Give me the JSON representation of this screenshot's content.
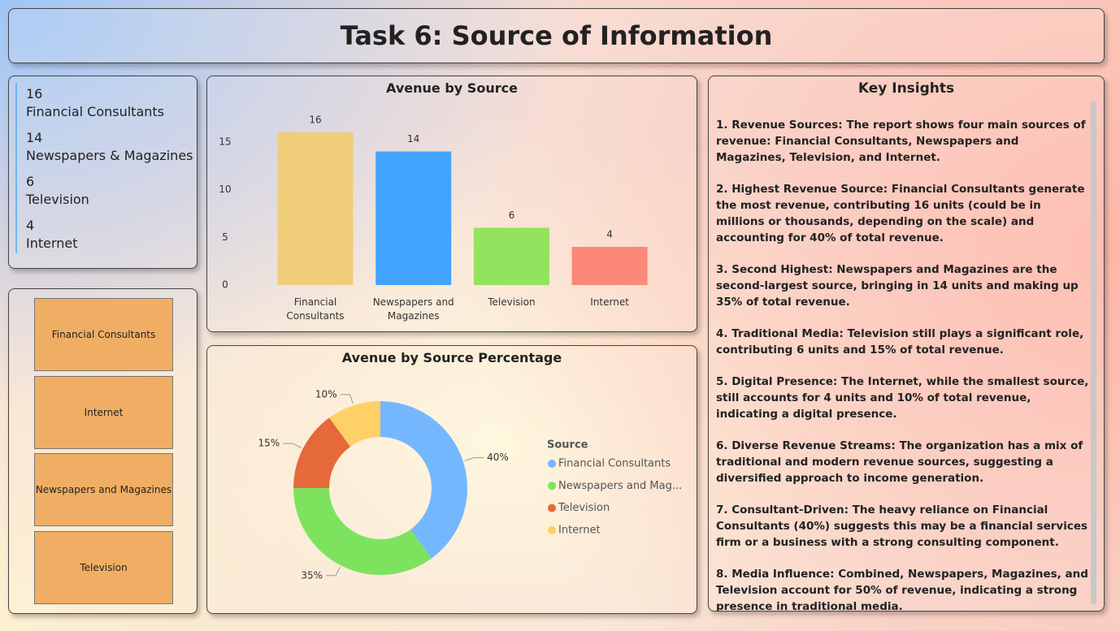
{
  "header": {
    "title": "Task 6: Source of Information"
  },
  "cards": [
    {
      "value": "16",
      "label": "Financial Consultants"
    },
    {
      "value": "14",
      "label": "Newspapers & Magazines"
    },
    {
      "value": "6",
      "label": "Television"
    },
    {
      "value": "4",
      "label": "Internet"
    }
  ],
  "slicer": {
    "items": [
      "Financial Consultants",
      "Internet",
      "Newspapers and Magazines",
      "Television"
    ]
  },
  "chart_data": [
    {
      "type": "bar",
      "title": "Avenue by Source",
      "categories": [
        "Financial Consultants",
        "Newspapers and Magazines",
        "Television",
        "Internet"
      ],
      "values": [
        16,
        14,
        6,
        4
      ],
      "colors": [
        "#f0cd78",
        "#41a4ff",
        "#93e35e",
        "#fb8878"
      ],
      "ylim": [
        0,
        16
      ],
      "yticks": [
        0,
        5,
        10,
        15
      ],
      "grid": false
    },
    {
      "type": "donut",
      "title": "Avenue by Source Percentage",
      "legend_title": "Source",
      "categories": [
        "Financial Consultants",
        "Newspapers and Mag...",
        "Television",
        "Internet"
      ],
      "values": [
        40,
        35,
        15,
        10
      ],
      "value_labels": [
        "40%",
        "35%",
        "15%",
        "10%"
      ],
      "colors": [
        "#75b7ff",
        "#7de35e",
        "#e5693a",
        "#ffd066"
      ]
    }
  ],
  "insights": {
    "title": "Key Insights",
    "items": [
      "1. Revenue Sources: The report shows four main sources of revenue: Financial Consultants, Newspapers and Magazines, Television, and Internet.",
      "2. Highest Revenue Source: Financial Consultants generate the most revenue, contributing 16 units (could be in millions or thousands, depending on the scale) and accounting for 40% of total revenue.",
      "3. Second Highest: Newspapers and Magazines are the second-largest source, bringing in 14 units and making up 35% of total revenue.",
      "4. Traditional Media: Television still plays a significant role, contributing 6 units and 15% of total revenue.",
      "5. Digital Presence: The Internet, while the smallest source, still accounts for 4 units and 10% of total revenue, indicating a digital presence.",
      "6. Diverse Revenue Streams: The organization has a mix of traditional and modern revenue sources, suggesting a diversified approach to income generation.",
      "7. Consultant-Driven: The heavy reliance on Financial Consultants (40%) suggests this may be a financial services firm or a business with a strong consulting component.",
      "8. Media Influence: Combined, Newspapers, Magazines, and Television account for 50% of revenue, indicating a strong presence in traditional media."
    ]
  }
}
